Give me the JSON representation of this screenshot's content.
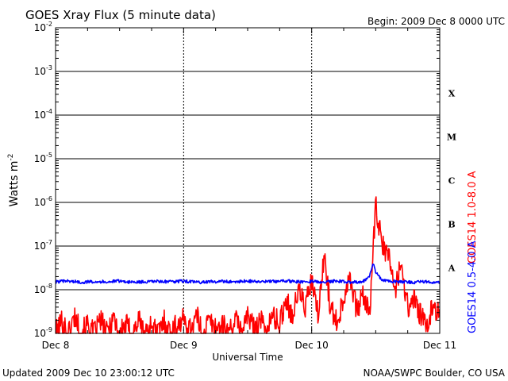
{
  "chart_data": {
    "type": "line",
    "title": "GOES Xray Flux (5 minute data)",
    "begin_label": "Begin:  2009 Dec 8 0000 UTC",
    "ylabel": "Watts m",
    "ylabel_exp": "-2",
    "xlabel": "Universal Time",
    "y_scale": "log",
    "ylim": [
      1e-09,
      0.01
    ],
    "grid": true,
    "y_tick_labels": [
      {
        "exp": -2,
        "base": "10",
        "sup": "-2"
      },
      {
        "exp": -3,
        "base": "10",
        "sup": "-3"
      },
      {
        "exp": -4,
        "base": "10",
        "sup": "-4"
      },
      {
        "exp": -5,
        "base": "10",
        "sup": "-5"
      },
      {
        "exp": -6,
        "base": "10",
        "sup": "-6"
      },
      {
        "exp": -7,
        "base": "10",
        "sup": "-7"
      },
      {
        "exp": -8,
        "base": "10",
        "sup": "-8"
      },
      {
        "exp": -9,
        "base": "10",
        "sup": "-9"
      }
    ],
    "x_ticks": [
      {
        "day": 0,
        "label": "Dec 8"
      },
      {
        "day": 1,
        "label": "Dec 9"
      },
      {
        "day": 2,
        "label": "Dec 10"
      },
      {
        "day": 3,
        "label": "Dec 11"
      }
    ],
    "flare_classes": [
      {
        "label": "X",
        "exp": -4
      },
      {
        "label": "M",
        "exp": -5
      },
      {
        "label": "C",
        "exp": -6
      },
      {
        "label": "B",
        "exp": -7
      },
      {
        "label": "A",
        "exp": -8
      }
    ],
    "series": [
      {
        "name": "GOES14 1.0-8.0 A",
        "color": "#ff0000",
        "x_days": [
          0.0,
          0.05,
          0.1,
          0.15,
          0.2,
          0.25,
          0.3,
          0.35,
          0.4,
          0.45,
          0.5,
          0.55,
          0.6,
          0.65,
          0.7,
          0.75,
          0.8,
          0.85,
          0.9,
          0.95,
          1.0,
          1.05,
          1.1,
          1.15,
          1.2,
          1.25,
          1.3,
          1.35,
          1.4,
          1.45,
          1.5,
          1.55,
          1.6,
          1.65,
          1.7,
          1.75,
          1.8,
          1.85,
          1.9,
          1.95,
          2.0,
          2.05,
          2.1,
          2.15,
          2.2,
          2.25,
          2.3,
          2.35,
          2.4,
          2.45,
          2.5,
          2.55,
          2.6,
          2.65,
          2.7,
          2.75,
          2.8,
          2.85,
          2.9,
          2.95,
          3.0
        ],
        "y_exp": [
          -9.0,
          -8.7,
          -9.0,
          -8.6,
          -9.0,
          -8.8,
          -9.0,
          -8.7,
          -9.0,
          -8.6,
          -9.0,
          -8.8,
          -9.0,
          -8.7,
          -9.0,
          -8.8,
          -9.0,
          -8.7,
          -9.0,
          -8.8,
          -8.7,
          -8.9,
          -8.6,
          -9.0,
          -8.7,
          -8.9,
          -8.8,
          -9.0,
          -8.7,
          -8.9,
          -8.6,
          -8.9,
          -8.7,
          -8.9,
          -8.6,
          -8.8,
          -8.2,
          -8.6,
          -8.0,
          -8.4,
          -7.8,
          -8.6,
          -7.2,
          -8.5,
          -8.7,
          -8.2,
          -7.6,
          -8.5,
          -8.1,
          -8.6,
          -6.1,
          -7.0,
          -7.2,
          -8.0,
          -7.4,
          -8.4,
          -8.2,
          -8.6,
          -8.9,
          -8.3,
          -8.6
        ]
      },
      {
        "name": "GOES14 0.5-4.0 A",
        "color": "#0000ff",
        "x_days": [
          0.0,
          0.1,
          0.2,
          0.3,
          0.4,
          0.5,
          0.6,
          0.7,
          0.8,
          0.9,
          1.0,
          1.1,
          1.2,
          1.3,
          1.4,
          1.5,
          1.6,
          1.7,
          1.8,
          1.9,
          2.0,
          2.1,
          2.2,
          2.3,
          2.4,
          2.45,
          2.48,
          2.5,
          2.55,
          2.6,
          2.7,
          2.8,
          2.9,
          3.0
        ],
        "y_exp": [
          -7.82,
          -7.8,
          -7.83,
          -7.81,
          -7.82,
          -7.8,
          -7.83,
          -7.82,
          -7.81,
          -7.82,
          -7.8,
          -7.83,
          -7.82,
          -7.81,
          -7.82,
          -7.8,
          -7.82,
          -7.81,
          -7.8,
          -7.82,
          -7.81,
          -7.82,
          -7.8,
          -7.83,
          -7.81,
          -7.7,
          -7.4,
          -7.6,
          -7.78,
          -7.8,
          -7.82,
          -7.83,
          -7.81,
          -7.84
        ]
      }
    ]
  },
  "footer": {
    "updated": "Updated 2009 Dec 10 23:00:12 UTC",
    "credit": "NOAA/SWPC Boulder, CO USA"
  }
}
